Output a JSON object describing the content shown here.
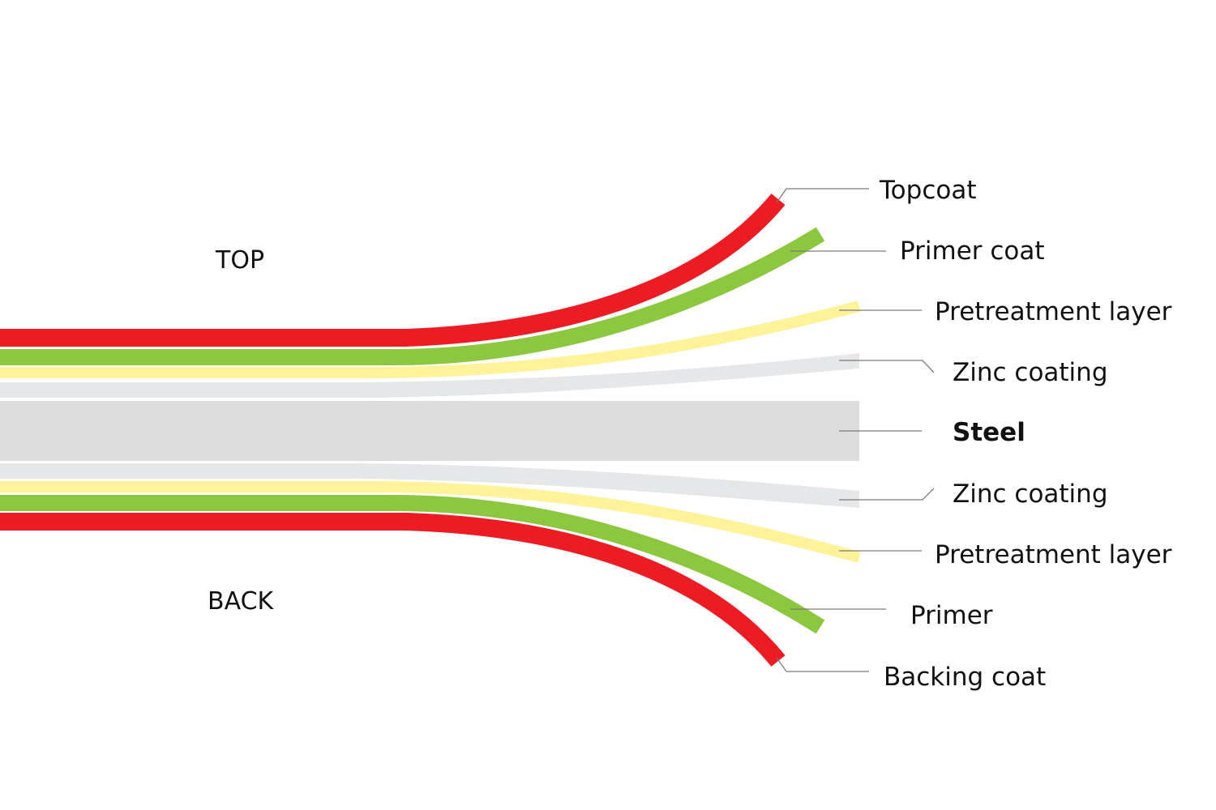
{
  "colors": {
    "topcoat": "#ED1C24",
    "primer": "#8DC63F",
    "pretreatment": "#FFF29A",
    "zinc": "#E6E7E8",
    "steel": "#DCDCDC",
    "leader_line": "#7A7A7A",
    "text": "#111111"
  },
  "sides": {
    "top": "TOP",
    "back": "BACK"
  },
  "layers": {
    "topcoat": "Topcoat",
    "primer_coat": "Primer coat",
    "pretreatment_top": "Pretreatment layer",
    "zinc_top": "Zinc coating",
    "steel": "Steel",
    "zinc_back": "Zinc coating",
    "pretreatment_back": "Pretreatment layer",
    "primer_back": "Primer",
    "backing_coat": "Backing coat"
  }
}
